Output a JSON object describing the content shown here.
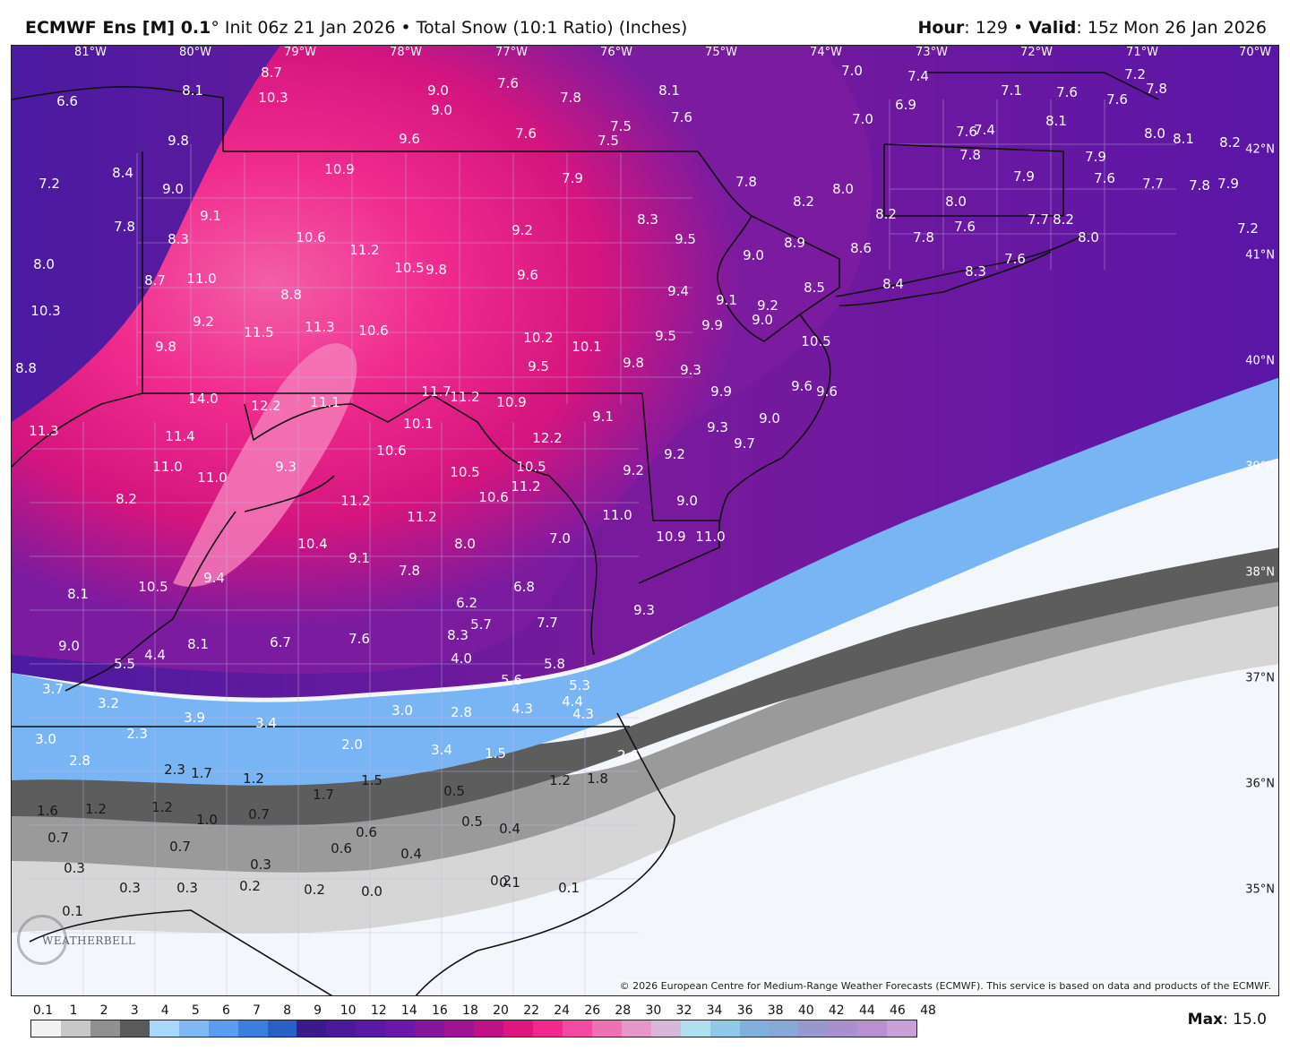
{
  "header": {
    "model": "ECMWF Ens [M] 0.1",
    "degree": "°",
    "init": "Init 06z 21 Jan 2026",
    "product": "Total Snow (10:1 Ratio) (Inches)",
    "hour_label": "Hour",
    "hour_value": ": 129",
    "valid_label": "Valid",
    "valid_value": ": 15z Mon 26 Jan 2026"
  },
  "map": {
    "longitudes": [
      "81°W",
      "80°W",
      "79°W",
      "78°W",
      "77°W",
      "76°W",
      "75°W",
      "74°W",
      "73°W",
      "72°W",
      "71°W",
      "70°W"
    ],
    "latitudes": [
      "42°N",
      "41°N",
      "40°N",
      "39°N",
      "38°N",
      "37°N",
      "36°N",
      "35°N"
    ],
    "point_values": [
      "6.6",
      "8.1",
      "8.7",
      "10.3",
      "9.0",
      "9.0",
      "9.6",
      "7.6",
      "7.6",
      "7.8",
      "8.1",
      "7.6",
      "7.5",
      "7.5",
      "7.0",
      "7.4",
      "7.2",
      "7.8",
      "6.9",
      "7.0",
      "7.1",
      "7.6",
      "8.1",
      "7.6",
      "8.0",
      "8.1",
      "8.2",
      "7.6",
      "7.4",
      "9.8",
      "8.4",
      "7.2",
      "9.0",
      "10.9",
      "7.9",
      "7.8",
      "8.2",
      "8.0",
      "7.8",
      "7.9",
      "7.9",
      "7.6",
      "7.7",
      "7.8",
      "7.9",
      "9.1",
      "7.8",
      "8.3",
      "10.6",
      "11.2",
      "9.2",
      "8.3",
      "9.5",
      "9.0",
      "8.9",
      "8.2",
      "8.0",
      "7.8",
      "7.6",
      "7.7",
      "8.2",
      "8.0",
      "7.2",
      "8.0",
      "8.7",
      "11.0",
      "10.5",
      "9.8",
      "9.6",
      "9.4",
      "9.1",
      "9.2",
      "9.0",
      "8.5",
      "8.6",
      "8.4",
      "8.3",
      "7.6",
      "10.3",
      "8.8",
      "9.2",
      "9.8",
      "11.5",
      "11.3",
      "10.6",
      "10.2",
      "10.1",
      "9.8",
      "9.5",
      "9.9",
      "10.5",
      "14.0",
      "12.2",
      "11.1",
      "11.7",
      "11.2",
      "10.9",
      "9.5",
      "9.3",
      "9.9",
      "9.6",
      "9.6",
      "11.3",
      "10.1",
      "9.1",
      "9.3",
      "9.0",
      "9.7",
      "11.4",
      "10.6",
      "12.2",
      "9.3",
      "11.0",
      "11.0",
      "10.5",
      "9.2",
      "9.2",
      "8.2",
      "11.2",
      "10.6",
      "10.5",
      "11.2",
      "9.0",
      "8.8",
      "11.2",
      "11.0",
      "10.4",
      "9.1",
      "8.0",
      "7.0",
      "10.9",
      "11.0",
      "10.5",
      "9.4",
      "7.8",
      "8.1",
      "6.8",
      "6.2",
      "5.7",
      "7.7",
      "9.3",
      "9.0",
      "8.1",
      "6.7",
      "7.6",
      "8.3",
      "5.5",
      "4.4",
      "4.0",
      "5.8",
      "5.6",
      "3.7",
      "3.2",
      "5.3",
      "4.4",
      "3.9",
      "3.4",
      "3.0",
      "2.8",
      "4.3",
      "4.3",
      "3.0",
      "2.3",
      "2.0",
      "3.4",
      "1.5",
      "2.8",
      "2.6",
      "2.3",
      "1.7",
      "1.2",
      "1.2",
      "1.5",
      "0.5",
      "1.8",
      "1.7",
      "1.6",
      "1.2",
      "1.2",
      "1.0",
      "0.7",
      "0.7",
      "0.7",
      "0.6",
      "0.5",
      "0.4",
      "0.6",
      "0.4",
      "0.3",
      "0.3",
      "0.3",
      "0.3",
      "0.2",
      "0.2",
      "0.0",
      "0.2",
      "0.1",
      "0.1",
      "0.1"
    ],
    "copyright": "© 2026 European Centre for Medium-Range Weather Forecasts (ECMWF). This service is based on data and products of the ECMWF.",
    "logo_text": "WEATHERBELL"
  },
  "legend": {
    "ticks": [
      "0.1",
      "1",
      "2",
      "3",
      "4",
      "5",
      "6",
      "7",
      "8",
      "9",
      "10",
      "12",
      "14",
      "16",
      "18",
      "20",
      "22",
      "24",
      "26",
      "28",
      "30",
      "32",
      "34",
      "36",
      "38",
      "40",
      "42",
      "44",
      "46",
      "48"
    ],
    "colors": [
      "#f2f2f2",
      "#c8c8c8",
      "#909090",
      "#5a5a5a",
      "#a8d8ff",
      "#7fb8f5",
      "#5a9cf0",
      "#3a7fe0",
      "#2a5fc8",
      "#3b1b8c",
      "#4a1a9a",
      "#5a18a6",
      "#6c16ac",
      "#86159e",
      "#a01494",
      "#c01288",
      "#e01680",
      "#f2288c",
      "#f24aa0",
      "#f070b4",
      "#e896c8",
      "#d8b8d8",
      "#b0e0f0",
      "#90c8e8",
      "#80b0e0",
      "#88a8d8",
      "#9898d0",
      "#a890d0",
      "#b890d0",
      "#c8a0d8"
    ],
    "max_label": "Max",
    "max_value": ": 15.0"
  }
}
